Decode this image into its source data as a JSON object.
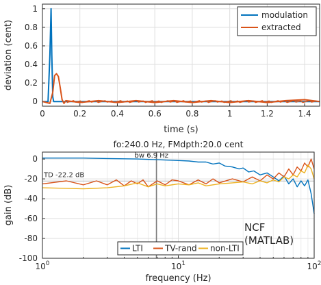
{
  "chart_data": [
    {
      "type": "line",
      "xlabel": "time (s)",
      "ylabel": "deviation (cent)",
      "xlim": [
        0,
        1.48
      ],
      "ylim": [
        -0.05,
        1.05
      ],
      "x_ticks": [
        "0",
        "0.2",
        "0.4",
        "0.6",
        "0.8",
        "1",
        "1.2",
        "1.4"
      ],
      "y_ticks": [
        "0",
        "0.2",
        "0.4",
        "0.6",
        "0.8",
        "1"
      ],
      "grid": true,
      "legend_position": "top-right",
      "series": [
        {
          "name": "modulation",
          "color": "#0072BD",
          "x": [
            0,
            0.03,
            0.04,
            0.046,
            0.05,
            0.055,
            0.06,
            0.07,
            0.1,
            0.3,
            0.6,
            1.0,
            1.48
          ],
          "y": [
            0,
            0,
            0.5,
            1.0,
            0.5,
            0.05,
            0,
            0,
            0,
            0,
            0,
            0,
            0
          ]
        },
        {
          "name": "extracted",
          "color": "#D95319",
          "x": [
            0,
            0.04,
            0.055,
            0.065,
            0.075,
            0.085,
            0.095,
            0.105,
            0.115,
            0.125,
            0.2,
            0.3,
            0.4,
            0.5,
            0.6,
            0.7,
            0.8,
            0.9,
            1.0,
            1.1,
            1.2,
            1.3,
            1.4,
            1.48
          ],
          "y": [
            0,
            -0.02,
            0.1,
            0.28,
            0.3,
            0.27,
            0.15,
            0.02,
            -0.02,
            0.01,
            -0.01,
            0.01,
            -0.01,
            0.01,
            -0.01,
            0.01,
            -0.01,
            0.01,
            -0.01,
            0.01,
            -0.01,
            0.01,
            0.02,
            0
          ]
        }
      ]
    },
    {
      "type": "line",
      "title": "fo:240.0 Hz, FMdpth:20.0 cent",
      "xlabel": "frequency (Hz)",
      "ylabel": "gain (dB)",
      "x_scale": "log",
      "xlim": [
        1,
        100
      ],
      "ylim": [
        -100,
        7
      ],
      "x_tick_bases": [
        "10",
        "10",
        "10"
      ],
      "x_tick_exps": [
        "0",
        "1",
        "2"
      ],
      "y_ticks": [
        "0",
        "-20",
        "-40",
        "-60",
        "-80",
        "-100"
      ],
      "grid": true,
      "legend_position": "bottom",
      "annotations": {
        "bw": "bw 6.9 Hz",
        "td": "TD -22.2 dB",
        "ncf1": "NCF",
        "ncf2": "(MATLAB)"
      },
      "bw_marker_hz": 6.9,
      "td_level_db": -22.2,
      "series": [
        {
          "name": "LTI",
          "color": "#0072BD",
          "x": [
            1,
            2,
            3,
            5,
            8,
            10,
            12,
            14,
            16,
            18,
            20,
            22,
            25,
            28,
            30,
            33,
            36,
            40,
            45,
            50,
            55,
            60,
            65,
            70,
            75,
            80,
            85,
            90,
            95,
            100
          ],
          "y": [
            1,
            1,
            0.5,
            0,
            -1,
            -1.5,
            -2,
            -3,
            -3,
            -5,
            -4,
            -7,
            -8,
            -10,
            -9,
            -13,
            -12,
            -16,
            -14,
            -18,
            -22,
            -17,
            -25,
            -20,
            -28,
            -22,
            -27,
            -21,
            -35,
            -55
          ]
        },
        {
          "name": "TV-rand",
          "color": "#D95319",
          "x": [
            1,
            1.5,
            2,
            2.5,
            3,
            3.5,
            4,
            4.5,
            5,
            5.5,
            6,
            7,
            8,
            9,
            10,
            12,
            14,
            16,
            18,
            20,
            25,
            30,
            35,
            40,
            45,
            50,
            55,
            60,
            65,
            70,
            75,
            80,
            85,
            90,
            95,
            100
          ],
          "y": [
            -25,
            -22,
            -26,
            -22,
            -26,
            -21,
            -27,
            -22,
            -25,
            -21,
            -28,
            -22,
            -26,
            -21,
            -22,
            -26,
            -21,
            -25,
            -20,
            -24,
            -20,
            -23,
            -18,
            -22,
            -16,
            -20,
            -14,
            -18,
            -10,
            -16,
            -8,
            -12,
            -4,
            -8,
            0,
            -10
          ]
        },
        {
          "name": "non-LTI",
          "color": "#EDB120",
          "x": [
            1,
            2,
            3,
            4,
            5,
            6,
            7,
            8,
            10,
            12,
            14,
            16,
            20,
            25,
            30,
            35,
            40,
            45,
            50,
            55,
            60,
            65,
            70,
            75,
            80,
            85,
            90,
            95,
            100
          ],
          "y": [
            -29,
            -30,
            -29,
            -27,
            -24,
            -28,
            -25,
            -27,
            -25,
            -26,
            -24,
            -27,
            -25,
            -24,
            -23,
            -25,
            -22,
            -24,
            -21,
            -23,
            -18,
            -20,
            -16,
            -18,
            -12,
            -14,
            -6,
            -10,
            -20
          ]
        }
      ]
    }
  ]
}
